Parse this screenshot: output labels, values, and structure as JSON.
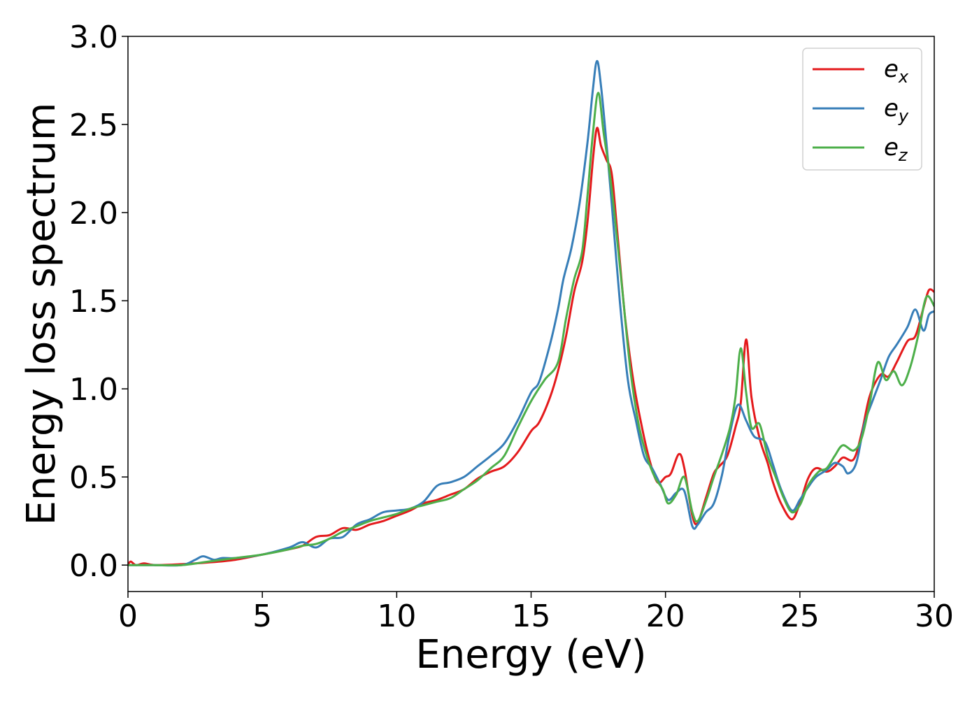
{
  "chart_data": {
    "type": "line",
    "title": "",
    "xlabel": "Energy (eV)",
    "ylabel": "Energy loss spectrum",
    "xlim": [
      0,
      30
    ],
    "ylim": [
      -0.15,
      3.0
    ],
    "xticks": [
      0,
      5,
      10,
      15,
      20,
      25,
      30
    ],
    "xtick_labels": [
      "0",
      "5",
      "10",
      "15",
      "20",
      "25",
      "30"
    ],
    "yticks": [
      0.0,
      0.5,
      1.0,
      1.5,
      2.0,
      2.5,
      3.0
    ],
    "ytick_labels": [
      "0.0",
      "0.5",
      "1.0",
      "1.5",
      "2.0",
      "2.5",
      "3.0"
    ],
    "grid": false,
    "legend_position": "top-right",
    "series": [
      {
        "name": "e_x",
        "label_base": "e",
        "label_sub": "x",
        "color": "#e41a1c",
        "points": [
          [
            0,
            0.0
          ],
          [
            0.1,
            0.02
          ],
          [
            0.3,
            0.0
          ],
          [
            0.6,
            0.01
          ],
          [
            1,
            0.0
          ],
          [
            2,
            0.005
          ],
          [
            3,
            0.015
          ],
          [
            4,
            0.03
          ],
          [
            5,
            0.06
          ],
          [
            6,
            0.09
          ],
          [
            6.5,
            0.11
          ],
          [
            7,
            0.16
          ],
          [
            7.5,
            0.17
          ],
          [
            8,
            0.21
          ],
          [
            8.5,
            0.2
          ],
          [
            9,
            0.23
          ],
          [
            9.5,
            0.25
          ],
          [
            10,
            0.28
          ],
          [
            10.5,
            0.31
          ],
          [
            11,
            0.35
          ],
          [
            11.5,
            0.37
          ],
          [
            12,
            0.4
          ],
          [
            12.5,
            0.43
          ],
          [
            13,
            0.49
          ],
          [
            13.5,
            0.53
          ],
          [
            14,
            0.56
          ],
          [
            14.5,
            0.64
          ],
          [
            15,
            0.76
          ],
          [
            15.3,
            0.81
          ],
          [
            15.7,
            0.95
          ],
          [
            16,
            1.1
          ],
          [
            16.3,
            1.3
          ],
          [
            16.6,
            1.55
          ],
          [
            16.9,
            1.72
          ],
          [
            17.1,
            1.95
          ],
          [
            17.3,
            2.3
          ],
          [
            17.45,
            2.48
          ],
          [
            17.6,
            2.38
          ],
          [
            17.8,
            2.3
          ],
          [
            18,
            2.22
          ],
          [
            18.2,
            1.9
          ],
          [
            18.5,
            1.4
          ],
          [
            18.8,
            1.05
          ],
          [
            19.1,
            0.8
          ],
          [
            19.4,
            0.6
          ],
          [
            19.7,
            0.47
          ],
          [
            20,
            0.5
          ],
          [
            20.2,
            0.52
          ],
          [
            20.5,
            0.63
          ],
          [
            20.7,
            0.55
          ],
          [
            21,
            0.28
          ],
          [
            21.2,
            0.24
          ],
          [
            21.5,
            0.38
          ],
          [
            21.8,
            0.52
          ],
          [
            22,
            0.56
          ],
          [
            22.3,
            0.62
          ],
          [
            22.6,
            0.78
          ],
          [
            22.8,
            0.92
          ],
          [
            23,
            1.28
          ],
          [
            23.2,
            0.95
          ],
          [
            23.5,
            0.72
          ],
          [
            23.8,
            0.58
          ],
          [
            24,
            0.47
          ],
          [
            24.3,
            0.35
          ],
          [
            24.7,
            0.26
          ],
          [
            25,
            0.35
          ],
          [
            25.3,
            0.49
          ],
          [
            25.6,
            0.55
          ],
          [
            26,
            0.53
          ],
          [
            26.3,
            0.56
          ],
          [
            26.6,
            0.61
          ],
          [
            27,
            0.6
          ],
          [
            27.3,
            0.75
          ],
          [
            27.6,
            0.96
          ],
          [
            28,
            1.08
          ],
          [
            28.3,
            1.07
          ],
          [
            28.6,
            1.15
          ],
          [
            29,
            1.27
          ],
          [
            29.3,
            1.3
          ],
          [
            29.6,
            1.46
          ],
          [
            29.8,
            1.56
          ],
          [
            30,
            1.55
          ]
        ]
      },
      {
        "name": "e_y",
        "label_base": "e",
        "label_sub": "y",
        "color": "#377eb8",
        "points": [
          [
            0,
            0.0
          ],
          [
            0.5,
            0.0
          ],
          [
            1,
            0.0
          ],
          [
            2,
            0.0
          ],
          [
            2.5,
            0.03
          ],
          [
            2.8,
            0.05
          ],
          [
            3.2,
            0.03
          ],
          [
            3.5,
            0.04
          ],
          [
            4,
            0.04
          ],
          [
            5,
            0.06
          ],
          [
            6,
            0.1
          ],
          [
            6.5,
            0.13
          ],
          [
            7,
            0.1
          ],
          [
            7.5,
            0.15
          ],
          [
            8,
            0.16
          ],
          [
            8.5,
            0.23
          ],
          [
            9,
            0.26
          ],
          [
            9.5,
            0.3
          ],
          [
            10,
            0.31
          ],
          [
            10.5,
            0.32
          ],
          [
            11,
            0.36
          ],
          [
            11.5,
            0.45
          ],
          [
            12,
            0.47
          ],
          [
            12.5,
            0.5
          ],
          [
            13,
            0.56
          ],
          [
            13.5,
            0.62
          ],
          [
            14,
            0.69
          ],
          [
            14.5,
            0.82
          ],
          [
            15,
            0.98
          ],
          [
            15.3,
            1.04
          ],
          [
            15.7,
            1.25
          ],
          [
            16,
            1.45
          ],
          [
            16.2,
            1.62
          ],
          [
            16.5,
            1.8
          ],
          [
            16.8,
            2.05
          ],
          [
            17.1,
            2.4
          ],
          [
            17.3,
            2.7
          ],
          [
            17.45,
            2.86
          ],
          [
            17.6,
            2.72
          ],
          [
            17.8,
            2.4
          ],
          [
            18,
            2.05
          ],
          [
            18.3,
            1.5
          ],
          [
            18.6,
            1.05
          ],
          [
            18.9,
            0.82
          ],
          [
            19.2,
            0.62
          ],
          [
            19.5,
            0.55
          ],
          [
            19.8,
            0.46
          ],
          [
            20.1,
            0.37
          ],
          [
            20.4,
            0.41
          ],
          [
            20.7,
            0.42
          ],
          [
            21,
            0.22
          ],
          [
            21.2,
            0.23
          ],
          [
            21.5,
            0.3
          ],
          [
            21.8,
            0.35
          ],
          [
            22.1,
            0.51
          ],
          [
            22.4,
            0.75
          ],
          [
            22.7,
            0.91
          ],
          [
            23,
            0.82
          ],
          [
            23.3,
            0.73
          ],
          [
            23.7,
            0.7
          ],
          [
            24,
            0.57
          ],
          [
            24.3,
            0.43
          ],
          [
            24.7,
            0.31
          ],
          [
            25,
            0.37
          ],
          [
            25.3,
            0.44
          ],
          [
            25.6,
            0.5
          ],
          [
            26,
            0.54
          ],
          [
            26.3,
            0.58
          ],
          [
            26.6,
            0.56
          ],
          [
            26.8,
            0.52
          ],
          [
            27.1,
            0.58
          ],
          [
            27.4,
            0.8
          ],
          [
            27.7,
            0.93
          ],
          [
            28,
            1.05
          ],
          [
            28.3,
            1.18
          ],
          [
            28.6,
            1.25
          ],
          [
            29,
            1.35
          ],
          [
            29.3,
            1.45
          ],
          [
            29.6,
            1.33
          ],
          [
            29.8,
            1.42
          ],
          [
            30,
            1.44
          ]
        ]
      },
      {
        "name": "e_z",
        "label_base": "e",
        "label_sub": "z",
        "color": "#4daf4a",
        "points": [
          [
            0,
            0.0
          ],
          [
            0.5,
            0.0
          ],
          [
            1,
            0.0
          ],
          [
            2,
            0.0
          ],
          [
            3,
            0.02
          ],
          [
            4,
            0.04
          ],
          [
            5,
            0.06
          ],
          [
            6,
            0.09
          ],
          [
            6.5,
            0.11
          ],
          [
            7,
            0.12
          ],
          [
            7.5,
            0.15
          ],
          [
            8,
            0.19
          ],
          [
            8.5,
            0.22
          ],
          [
            9,
            0.25
          ],
          [
            9.5,
            0.27
          ],
          [
            10,
            0.29
          ],
          [
            10.5,
            0.32
          ],
          [
            11,
            0.34
          ],
          [
            11.5,
            0.36
          ],
          [
            12,
            0.38
          ],
          [
            12.5,
            0.43
          ],
          [
            13,
            0.48
          ],
          [
            13.5,
            0.55
          ],
          [
            14,
            0.62
          ],
          [
            14.5,
            0.78
          ],
          [
            15,
            0.93
          ],
          [
            15.5,
            1.05
          ],
          [
            16,
            1.15
          ],
          [
            16.3,
            1.4
          ],
          [
            16.6,
            1.62
          ],
          [
            16.9,
            1.78
          ],
          [
            17.1,
            2.1
          ],
          [
            17.3,
            2.45
          ],
          [
            17.5,
            2.68
          ],
          [
            17.7,
            2.45
          ],
          [
            17.9,
            2.25
          ],
          [
            18.1,
            2.0
          ],
          [
            18.4,
            1.55
          ],
          [
            18.7,
            1.1
          ],
          [
            19,
            0.8
          ],
          [
            19.3,
            0.62
          ],
          [
            19.6,
            0.5
          ],
          [
            19.9,
            0.43
          ],
          [
            20.1,
            0.35
          ],
          [
            20.4,
            0.4
          ],
          [
            20.7,
            0.5
          ],
          [
            21,
            0.3
          ],
          [
            21.2,
            0.25
          ],
          [
            21.5,
            0.36
          ],
          [
            21.8,
            0.5
          ],
          [
            22.1,
            0.63
          ],
          [
            22.4,
            0.78
          ],
          [
            22.6,
            0.95
          ],
          [
            22.8,
            1.23
          ],
          [
            23,
            0.98
          ],
          [
            23.2,
            0.78
          ],
          [
            23.5,
            0.8
          ],
          [
            23.8,
            0.62
          ],
          [
            24.1,
            0.5
          ],
          [
            24.4,
            0.38
          ],
          [
            24.7,
            0.3
          ],
          [
            25,
            0.34
          ],
          [
            25.3,
            0.45
          ],
          [
            25.7,
            0.53
          ],
          [
            26,
            0.55
          ],
          [
            26.3,
            0.62
          ],
          [
            26.6,
            0.68
          ],
          [
            27,
            0.65
          ],
          [
            27.3,
            0.72
          ],
          [
            27.6,
            0.92
          ],
          [
            27.9,
            1.15
          ],
          [
            28.2,
            1.05
          ],
          [
            28.5,
            1.1
          ],
          [
            28.8,
            1.02
          ],
          [
            29.1,
            1.12
          ],
          [
            29.4,
            1.3
          ],
          [
            29.7,
            1.52
          ],
          [
            30,
            1.47
          ]
        ]
      }
    ]
  }
}
